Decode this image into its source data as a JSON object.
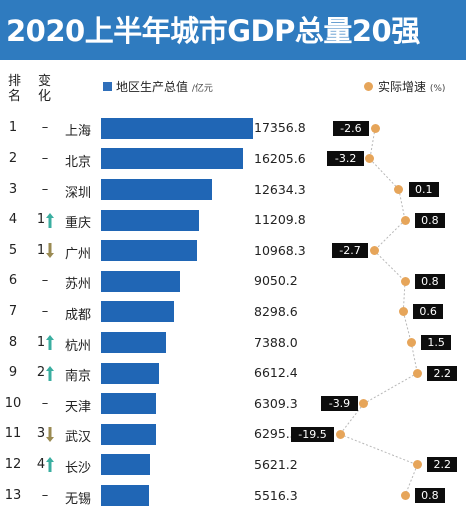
{
  "title": "2020上半年城市GDP总量20强",
  "headers": {
    "rank": "排\n名",
    "change": "变\n化"
  },
  "legend": {
    "gdp_label": "地区生产总值",
    "gdp_unit": "/亿元",
    "growth_label": "实际增速",
    "growth_unit": "(%)",
    "colors": {
      "bar": "#2066b5",
      "point": "#e6a55a",
      "up": "#3aaea0",
      "down": "#9a8a52"
    }
  },
  "chart_data": {
    "type": "bar",
    "title": "2020上半年城市GDP总量20强",
    "categories": [
      "上海",
      "北京",
      "深圳",
      "重庆",
      "广州",
      "苏州",
      "成都",
      "杭州",
      "南京",
      "天津",
      "武汉",
      "长沙",
      "无锡"
    ],
    "series": [
      {
        "name": "地区生产总值",
        "unit": "/亿元",
        "values": [
          17356.8,
          16205.6,
          12634.3,
          11209.8,
          10968.3,
          9050.2,
          8298.6,
          7388.0,
          6612.4,
          6309.3,
          6295.3,
          5621.2,
          5516.3
        ]
      },
      {
        "name": "实际增速",
        "unit": "(%)",
        "values": [
          -2.6,
          -3.2,
          0.1,
          0.8,
          -2.7,
          0.8,
          0.6,
          1.5,
          2.2,
          -3.9,
          -19.5,
          2.2,
          0.8
        ]
      }
    ],
    "growth_labels": [
      "-2.6",
      "-3.2",
      "0.1",
      "0.8",
      "-2.7",
      "0.8",
      "0.6",
      "1.5",
      "2.2",
      "-3.9",
      "-19.5",
      "2.2",
      "0.8"
    ],
    "gdp_labels": [
      "17356.8",
      "16205.6",
      "12634.3",
      "11209.8",
      "10968.3",
      "9050.2",
      "8298.6",
      "7388.0",
      "6612.4",
      "6309.3",
      "6295.3",
      "5621.2",
      "5516.3"
    ]
  },
  "rows": [
    {
      "rank": "1",
      "change": "–",
      "dir": "none",
      "city": "上海"
    },
    {
      "rank": "2",
      "change": "–",
      "dir": "none",
      "city": "北京"
    },
    {
      "rank": "3",
      "change": "–",
      "dir": "none",
      "city": "深圳"
    },
    {
      "rank": "4",
      "change": "1",
      "dir": "up",
      "city": "重庆"
    },
    {
      "rank": "5",
      "change": "1",
      "dir": "down",
      "city": "广州"
    },
    {
      "rank": "6",
      "change": "–",
      "dir": "none",
      "city": "苏州"
    },
    {
      "rank": "7",
      "change": "–",
      "dir": "none",
      "city": "成都"
    },
    {
      "rank": "8",
      "change": "1",
      "dir": "up",
      "city": "杭州"
    },
    {
      "rank": "9",
      "change": "2",
      "dir": "up",
      "city": "南京"
    },
    {
      "rank": "10",
      "change": "–",
      "dir": "none",
      "city": "天津"
    },
    {
      "rank": "11",
      "change": "3",
      "dir": "down",
      "city": "武汉"
    },
    {
      "rank": "12",
      "change": "4",
      "dir": "up",
      "city": "长沙"
    },
    {
      "rank": "13",
      "change": "–",
      "dir": "none",
      "city": "无锡"
    }
  ]
}
